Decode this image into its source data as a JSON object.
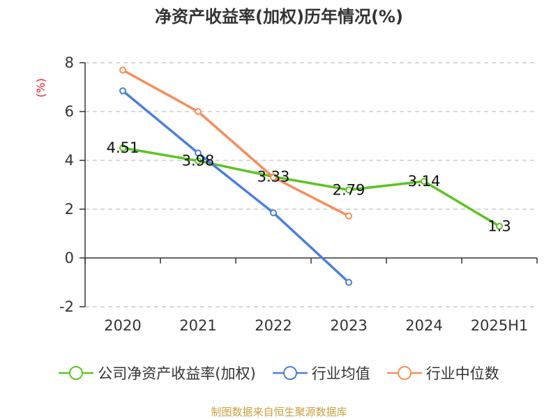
{
  "chart_data": {
    "type": "line",
    "title": "净资产收益率(加权)历年情况(%)",
    "ylabel": "(%)",
    "xlabel": "",
    "categories": [
      "2020",
      "2021",
      "2022",
      "2023",
      "2024",
      "2025H1"
    ],
    "ylim": [
      -2,
      8
    ],
    "yticks": [
      "8",
      "6",
      "4",
      "2",
      "0",
      "-2"
    ],
    "grid": true,
    "legend_position": "bottom",
    "series": [
      {
        "name": "公司净资产收益率(加权)",
        "color": "#5cc421",
        "values": [
          4.51,
          3.98,
          3.33,
          2.79,
          3.14,
          1.3
        ],
        "labels": [
          "4.51",
          "3.98",
          "3.33",
          "2.79",
          "3.14",
          "1.3"
        ]
      },
      {
        "name": "行业均值",
        "color": "#4a7fdc",
        "values": [
          6.85,
          4.3,
          1.85,
          -1.0,
          null,
          null
        ]
      },
      {
        "name": "行业中位数",
        "color": "#f78d5a",
        "values": [
          7.7,
          6.0,
          3.3,
          1.72,
          null,
          null
        ]
      }
    ]
  },
  "source": "制图数据来自恒生聚源数据库"
}
